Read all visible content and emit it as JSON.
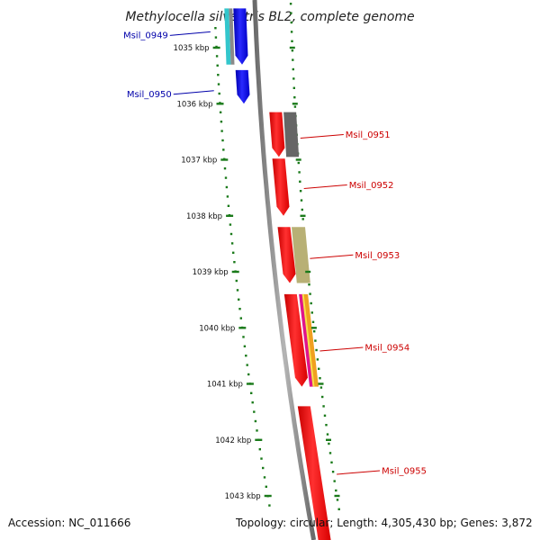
{
  "title": "Methylocella silvestris BL2, complete genome",
  "footer": {
    "accession": "Accession: NC_011666",
    "topology": "Topology: circular; Length: 4,305,430 bp; Genes: 3,872"
  },
  "colors": {
    "background": "#ffffff",
    "backbone": "#888888",
    "scale": "#1a7a1a",
    "forward_strand": "#e80000",
    "reverse_strand": "#0000e6",
    "forward_label": "#cc0000",
    "reverse_label": "#0000aa"
  },
  "scale_ticks": [
    {
      "kbp": 1035,
      "label": "1035 kbp"
    },
    {
      "kbp": 1036,
      "label": "1036 kbp"
    },
    {
      "kbp": 1037,
      "label": "1037 kbp"
    },
    {
      "kbp": 1038,
      "label": "1038 kbp"
    },
    {
      "kbp": 1039,
      "label": "1039 kbp"
    },
    {
      "kbp": 1040,
      "label": "1040 kbp"
    },
    {
      "kbp": 1041,
      "label": "1041 kbp"
    },
    {
      "kbp": 1042,
      "label": "1042 kbp"
    },
    {
      "kbp": 1043,
      "label": "1043 kbp"
    }
  ],
  "genes": [
    {
      "name": "Msil_0949",
      "strand": "-",
      "start_kbp": 1034.3,
      "end_kbp": 1035.3,
      "color": "#0000e6",
      "label_kbp": 1034.75
    },
    {
      "name": "Msil_0950",
      "strand": "-",
      "start_kbp": 1035.4,
      "end_kbp": 1036.0,
      "color": "#0000e6",
      "label_kbp": 1035.8
    },
    {
      "name": "Msil_0951",
      "strand": "+",
      "start_kbp": 1036.15,
      "end_kbp": 1036.95,
      "color": "#e80000",
      "label_kbp": 1036.55
    },
    {
      "name": "Msil_0952",
      "strand": "+",
      "start_kbp": 1036.98,
      "end_kbp": 1038.0,
      "color": "#e80000",
      "label_kbp": 1037.45
    },
    {
      "name": "Msil_0953",
      "strand": "+",
      "start_kbp": 1038.2,
      "end_kbp": 1039.2,
      "color": "#e80000",
      "label_kbp": 1038.7
    },
    {
      "name": "Msil_0954",
      "strand": "+",
      "start_kbp": 1039.4,
      "end_kbp": 1041.05,
      "color": "#e80000",
      "label_kbp": 1040.35
    },
    {
      "name": "Msil_0955",
      "strand": "+",
      "start_kbp": 1041.4,
      "end_kbp": 1043.8,
      "color": "#e80000",
      "label_kbp": 1042.55
    }
  ],
  "features": [
    {
      "kind": "cyan-band",
      "start_kbp": 1034.3,
      "end_kbp": 1035.3,
      "color": "#33c6cc"
    },
    {
      "kind": "gray-band",
      "start_kbp": 1034.3,
      "end_kbp": 1035.3,
      "color": "#8a8a8a"
    },
    {
      "kind": "gray-band",
      "start_kbp": 1036.15,
      "end_kbp": 1036.95,
      "color": "#666666"
    },
    {
      "kind": "olive-band",
      "start_kbp": 1038.2,
      "end_kbp": 1039.2,
      "color": "#b8b075"
    },
    {
      "kind": "magenta-band",
      "start_kbp": 1039.4,
      "end_kbp": 1041.05,
      "color": "#e0148c"
    },
    {
      "kind": "orange-band",
      "start_kbp": 1039.4,
      "end_kbp": 1041.05,
      "color": "#f0a020"
    }
  ]
}
